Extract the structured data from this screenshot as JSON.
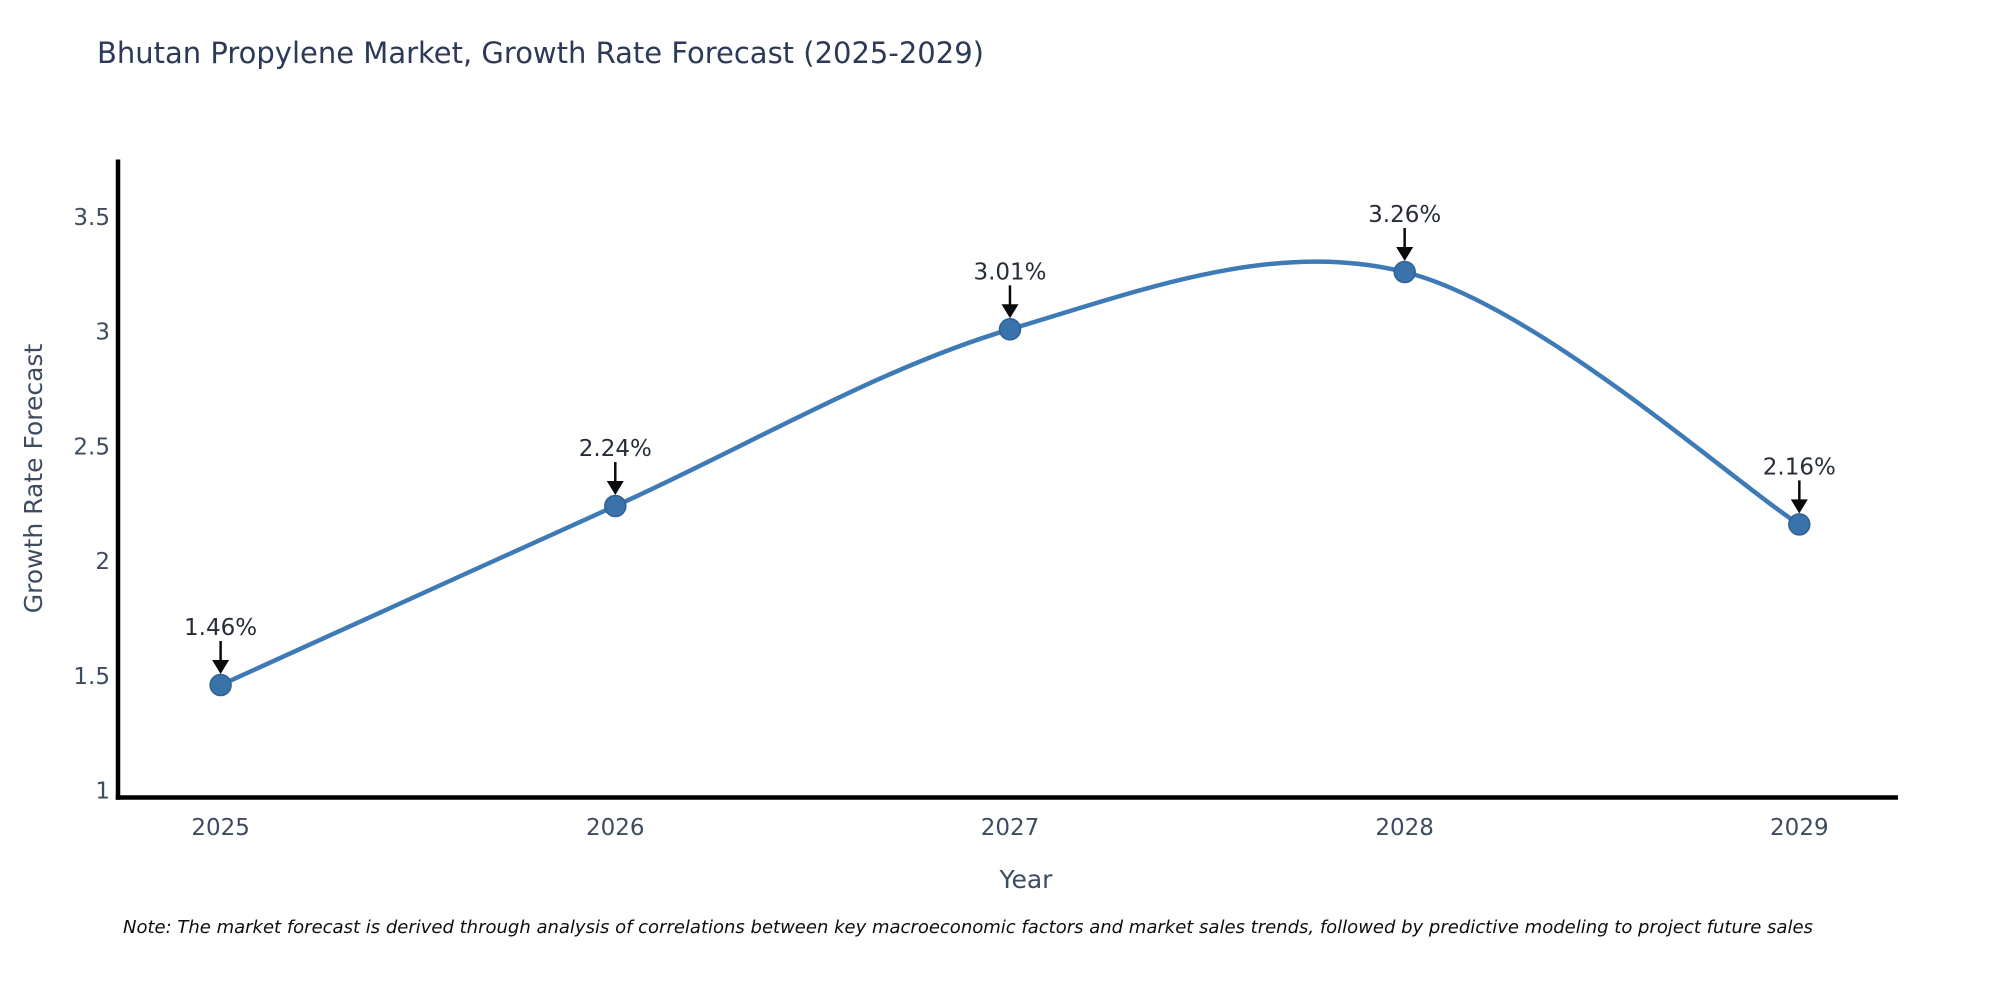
{
  "title": "Bhutan Propylene Market, Growth Rate Forecast (2025-2029)",
  "footnote": "Note: The market forecast is derived through analysis of correlations between key macroeconomic factors and market sales trends, followed by predictive modeling to project future sales",
  "chart_data": {
    "type": "line",
    "title": "Bhutan Propylene Market, Growth Rate Forecast (2025-2029)",
    "xlabel": "Year",
    "ylabel": "Growth Rate Forecast",
    "x": [
      2025,
      2026,
      2027,
      2028,
      2029
    ],
    "series": [
      {
        "name": "Growth Rate Forecast",
        "values": [
          1.46,
          2.24,
          3.01,
          3.26,
          2.16
        ]
      }
    ],
    "point_labels": [
      "1.46%",
      "2.24%",
      "3.01%",
      "3.26%",
      "2.16%"
    ],
    "xtick_labels": [
      "2025",
      "2026",
      "2027",
      "2028",
      "2029"
    ],
    "yticks": [
      1,
      1.5,
      2,
      2.5,
      3,
      3.5
    ],
    "ytick_labels": [
      "1",
      "1.5",
      "2",
      "2.5",
      "3",
      "3.5"
    ],
    "xlim": [
      2024.74,
      2029.25
    ],
    "ylim": [
      0.97,
      3.75
    ],
    "line_shape": "spline",
    "grid": false,
    "legend": "none",
    "annotation_style": "down-arrow-to-point",
    "colors": {
      "line": "#3e7ab5",
      "marker": "#3a73aa",
      "marker_edge": "#2f6196",
      "axis": "#000000",
      "title_text": "#2c3a57",
      "tick_text": "#3e4c60",
      "annotation_text": "#262d38",
      "arrow": "#0a0a0a",
      "background": "#ffffff"
    }
  }
}
